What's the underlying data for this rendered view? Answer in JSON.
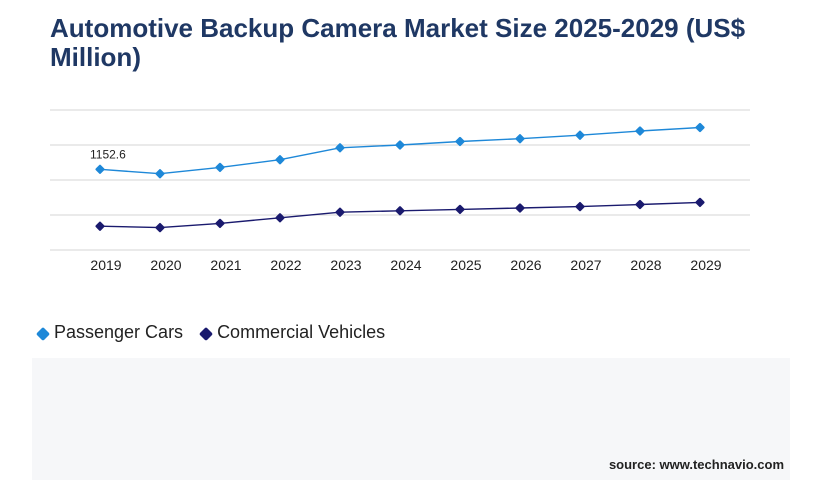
{
  "title": "Automotive Backup Camera Market Size 2025-2029 (US$ Million)",
  "source": "source: www.technavio.com",
  "chart_data": {
    "type": "line",
    "title": "Automotive Backup Camera Market Size 2025-2029 (US$ Million)",
    "categories": [
      "2019",
      "2020",
      "2021",
      "2022",
      "2023",
      "2024",
      "2025",
      "2026",
      "2027",
      "2028",
      "2029"
    ],
    "series": [
      {
        "name": "Passenger Cars",
        "color": "#1e88d8",
        "values": [
          1152.6,
          1090,
          1180,
          1290,
          1460,
          1500,
          1550,
          1590,
          1640,
          1700,
          1750
        ]
      },
      {
        "name": "Commercial Vehicles",
        "color": "#1a1a6e",
        "values": [
          340,
          320,
          380,
          460,
          540,
          560,
          580,
          600,
          620,
          650,
          680
        ]
      }
    ],
    "data_labels": [
      {
        "series": 0,
        "index": 0,
        "text": "1152.6"
      }
    ],
    "ylim": [
      0,
      2000
    ],
    "grid": true,
    "legend_position": "bottom-left",
    "xlabel": "",
    "ylabel": ""
  }
}
